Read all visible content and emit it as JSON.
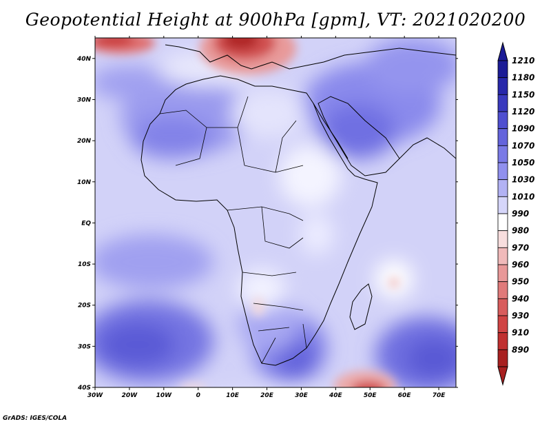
{
  "title": "Geopotential Height at 900hPa [gpm], VT: 2021020200",
  "credit": "GrADS: IGES/COLA",
  "map": {
    "lon_range": [
      -30,
      75
    ],
    "lat_range": [
      -40,
      45
    ],
    "lon_ticks": [
      "30W",
      "20W",
      "10W",
      "0",
      "10E",
      "20E",
      "30E",
      "40E",
      "50E",
      "60E",
      "70E"
    ],
    "lat_ticks": [
      "40S",
      "30S",
      "20S",
      "10S",
      "EQ",
      "10N",
      "20N",
      "30N",
      "40N"
    ]
  },
  "colorbar": {
    "max_label": "1210",
    "min_label": "890",
    "levels": [
      {
        "label": "1210",
        "color": "#1c1c96"
      },
      {
        "label": "1180",
        "color": "#2828aa"
      },
      {
        "label": "1150",
        "color": "#3a3abe"
      },
      {
        "label": "1120",
        "color": "#4f4fd0"
      },
      {
        "label": "1090",
        "color": "#6464dc"
      },
      {
        "label": "1070",
        "color": "#7a7ae6"
      },
      {
        "label": "1050",
        "color": "#9090ee"
      },
      {
        "label": "1030",
        "color": "#b2b2f4"
      },
      {
        "label": "1010",
        "color": "#d6d6fa"
      },
      {
        "label": "990",
        "color": "#ffffff"
      },
      {
        "label": "980",
        "color": "#f8dede"
      },
      {
        "label": "970",
        "color": "#f0baba"
      },
      {
        "label": "960",
        "color": "#e89898"
      },
      {
        "label": "950",
        "color": "#e07a7a"
      },
      {
        "label": "940",
        "color": "#d85c5c"
      },
      {
        "label": "930",
        "color": "#d04444"
      },
      {
        "label": "910",
        "color": "#c03030"
      },
      {
        "label": "890",
        "color": "#a82020"
      }
    ]
  }
}
